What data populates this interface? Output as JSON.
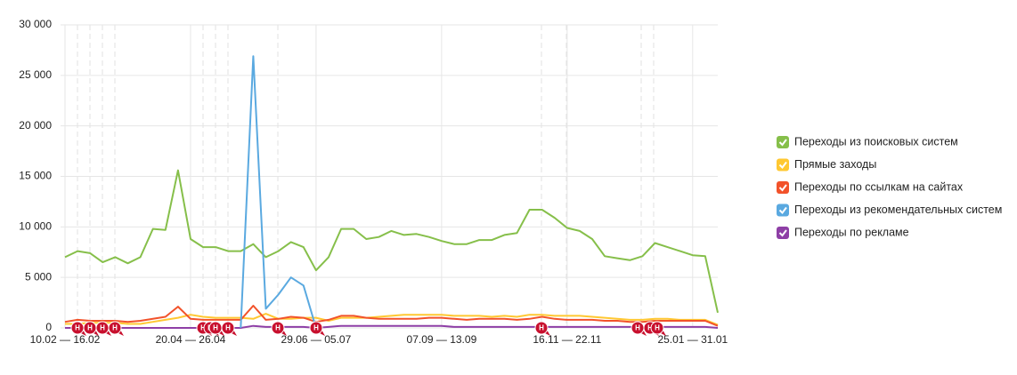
{
  "chart_data": {
    "type": "line",
    "categories": [
      "10.02 — 16.02",
      null,
      null,
      null,
      null,
      null,
      null,
      null,
      null,
      null,
      "20.04 — 26.04",
      null,
      null,
      null,
      null,
      null,
      null,
      null,
      null,
      null,
      "29.06 — 05.07",
      null,
      null,
      null,
      null,
      null,
      null,
      null,
      null,
      null,
      "07.09 — 13.09",
      null,
      null,
      null,
      null,
      null,
      null,
      null,
      null,
      null,
      "16.11 — 22.11",
      null,
      null,
      null,
      null,
      null,
      null,
      null,
      null,
      null,
      "25.01 — 31.01",
      null,
      null
    ],
    "series": [
      {
        "name": "Переходы из поисковых систем",
        "color": "#86bf4a",
        "values": [
          7000,
          7600,
          7400,
          6500,
          7000,
          6400,
          7000,
          9800,
          9700,
          15600,
          8800,
          8000,
          8000,
          7600,
          7600,
          8300,
          7000,
          7600,
          8500,
          8000,
          5700,
          7000,
          9800,
          9800,
          8800,
          9000,
          9600,
          9200,
          9300,
          9000,
          8600,
          8300,
          8300,
          8700,
          8700,
          9200,
          9400,
          11700,
          11700,
          10900,
          9900,
          9600,
          8800,
          7100,
          6900,
          6700,
          7100,
          8400,
          8000,
          7600,
          7200,
          7100,
          1500
        ]
      },
      {
        "name": "Прямые заходы",
        "color": "#ffc832",
        "values": [
          400,
          400,
          500,
          500,
          500,
          400,
          400,
          600,
          800,
          1000,
          1300,
          1100,
          1000,
          1000,
          1000,
          900,
          1400,
          900,
          900,
          1000,
          1000,
          700,
          1000,
          1000,
          1000,
          1100,
          1200,
          1300,
          1300,
          1300,
          1300,
          1200,
          1200,
          1200,
          1100,
          1200,
          1100,
          1300,
          1300,
          1200,
          1200,
          1200,
          1100,
          1000,
          900,
          800,
          800,
          900,
          900,
          800,
          800,
          800,
          300
        ]
      },
      {
        "name": "Переходы по ссылкам на сайтах",
        "color": "#f2522a",
        "values": [
          600,
          800,
          700,
          700,
          700,
          600,
          700,
          900,
          1100,
          2100,
          900,
          800,
          800,
          800,
          800,
          2200,
          800,
          900,
          1100,
          1000,
          600,
          800,
          1200,
          1200,
          1000,
          900,
          900,
          900,
          900,
          1000,
          1000,
          900,
          800,
          900,
          900,
          900,
          800,
          900,
          1100,
          900,
          800,
          800,
          800,
          700,
          700,
          600,
          600,
          700,
          700,
          700,
          700,
          700,
          200
        ]
      },
      {
        "name": "Переходы из рекомендательных систем",
        "color": "#5aa9e0",
        "values": [
          null,
          null,
          null,
          null,
          null,
          null,
          null,
          null,
          null,
          null,
          null,
          null,
          null,
          null,
          0,
          26900,
          1900,
          3300,
          5000,
          4200,
          0,
          null,
          null,
          null,
          null,
          null,
          null,
          null,
          null,
          null,
          null,
          null,
          null,
          null,
          null,
          null,
          null,
          null,
          null,
          null,
          null,
          null,
          null,
          null,
          null,
          null,
          null,
          null,
          null,
          null,
          null,
          null,
          null
        ]
      },
      {
        "name": "Переходы по рекламе",
        "color": "#8e3fa6",
        "values": [
          0,
          0,
          0,
          0,
          0,
          0,
          0,
          0,
          0,
          0,
          0,
          0,
          0,
          0,
          0,
          200,
          100,
          100,
          100,
          100,
          0,
          100,
          200,
          200,
          200,
          200,
          200,
          200,
          200,
          200,
          200,
          100,
          100,
          100,
          100,
          100,
          100,
          100,
          100,
          100,
          100,
          100,
          100,
          100,
          100,
          100,
          100,
          100,
          100,
          100,
          100,
          100,
          0
        ]
      }
    ],
    "ylim": [
      0,
      30000
    ],
    "yticks": [
      0,
      {
        "value": 5000,
        "label": "5 000"
      },
      {
        "value": 10000,
        "label": "10 000"
      },
      {
        "value": 15000,
        "label": "15 000"
      },
      {
        "value": 20000,
        "label": "20 000"
      },
      {
        "value": 25000,
        "label": "25 000"
      },
      {
        "value": 30000,
        "label": "30 000"
      }
    ],
    "grid": true,
    "holiday_marker": "Н"
  }
}
